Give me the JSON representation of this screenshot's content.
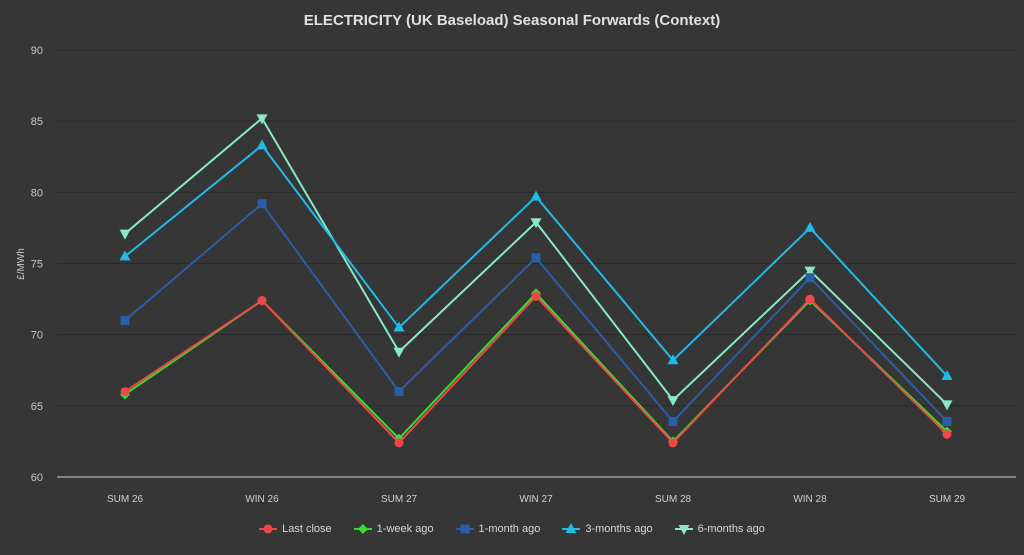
{
  "chart_data": {
    "type": "line",
    "title": "ELECTRICITY (UK Baseload) Seasonal Forwards (Context)",
    "xlabel": "",
    "ylabel": "£/MWh",
    "ylim": [
      60,
      90
    ],
    "yticks": [
      "60",
      "65",
      "70",
      "75",
      "80",
      "85",
      "90"
    ],
    "categories": [
      "SUM 26",
      "WIN 26",
      "SUM 27",
      "WIN 27",
      "SUM 28",
      "WIN 28",
      "SUM 29"
    ],
    "grid": true,
    "legend_position": "bottom",
    "series": [
      {
        "name": "Last close",
        "color": "#f04848",
        "marker": "circle",
        "values": [
          66.0,
          72.4,
          62.4,
          72.7,
          62.4,
          72.5,
          63.0
        ]
      },
      {
        "name": "1-week ago",
        "color": "#33dd33",
        "marker": "diamond",
        "values": [
          65.8,
          72.4,
          62.7,
          72.9,
          62.5,
          72.4,
          63.2
        ]
      },
      {
        "name": "1-month ago",
        "color": "#2a5fa8",
        "marker": "square",
        "values": [
          71.0,
          79.2,
          66.0,
          75.4,
          63.9,
          74.0,
          63.9
        ]
      },
      {
        "name": "3-months ago",
        "color": "#22bbe6",
        "marker": "triangle",
        "values": [
          75.5,
          83.3,
          70.5,
          79.7,
          68.2,
          77.5,
          67.1
        ]
      },
      {
        "name": "6-months ago",
        "color": "#88e8c8",
        "marker": "triangle-down",
        "values": [
          77.1,
          85.2,
          68.8,
          77.9,
          65.4,
          74.5,
          65.1
        ]
      }
    ]
  }
}
